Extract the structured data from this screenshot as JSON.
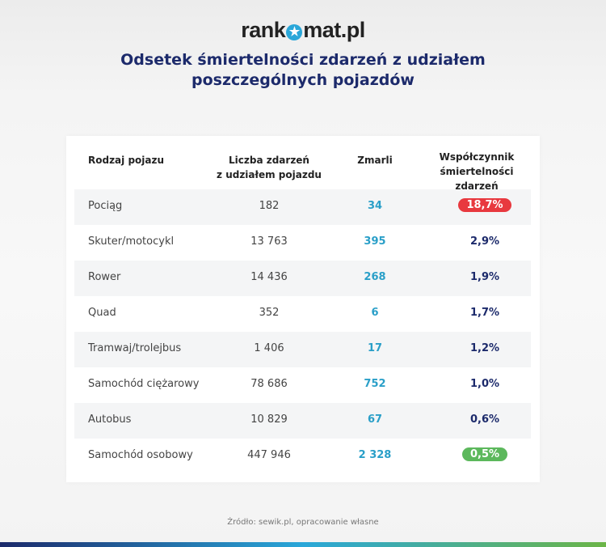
{
  "logo": {
    "text_before": "rank",
    "text_after": "mat.pl",
    "star": "★"
  },
  "title": {
    "line1": "Odsetek śmiertelności zdarzeń z udziałem",
    "line2": "poszczególnych pojazdów"
  },
  "table": {
    "headers": {
      "type": "Rodzaj pojazu",
      "count_l1": "Liczba zdarzeń",
      "count_l2": "z udziałem pojazdu",
      "deaths": "Zmarli",
      "rate_l1": "Współczynnik",
      "rate_l2": "śmiertelności zdarzeń"
    },
    "rows": [
      {
        "type": "Pociąg",
        "count": "182",
        "deaths": "34",
        "rate": "18,7%",
        "badge": "#e8393f"
      },
      {
        "type": "Skuter/motocykl",
        "count": "13 763",
        "deaths": "395",
        "rate": "2,9%"
      },
      {
        "type": "Rower",
        "count": "14 436",
        "deaths": "268",
        "rate": "1,9%"
      },
      {
        "type": "Quad",
        "count": "352",
        "deaths": "6",
        "rate": "1,7%"
      },
      {
        "type": "Tramwaj/trolejbus",
        "count": "1 406",
        "deaths": "17",
        "rate": "1,2%"
      },
      {
        "type": "Samochód ciężarowy",
        "count": "78 686",
        "deaths": "752",
        "rate": "1,0%"
      },
      {
        "type": "Autobus",
        "count": "10 829",
        "deaths": "67",
        "rate": "0,6%"
      },
      {
        "type": "Samochód osobowy",
        "count": "447 946",
        "deaths": "2 328",
        "rate": "0,5%",
        "badge": "#5cb85c"
      }
    ]
  },
  "footer": "Źródło: sewik.pl, opracowanie własne"
}
